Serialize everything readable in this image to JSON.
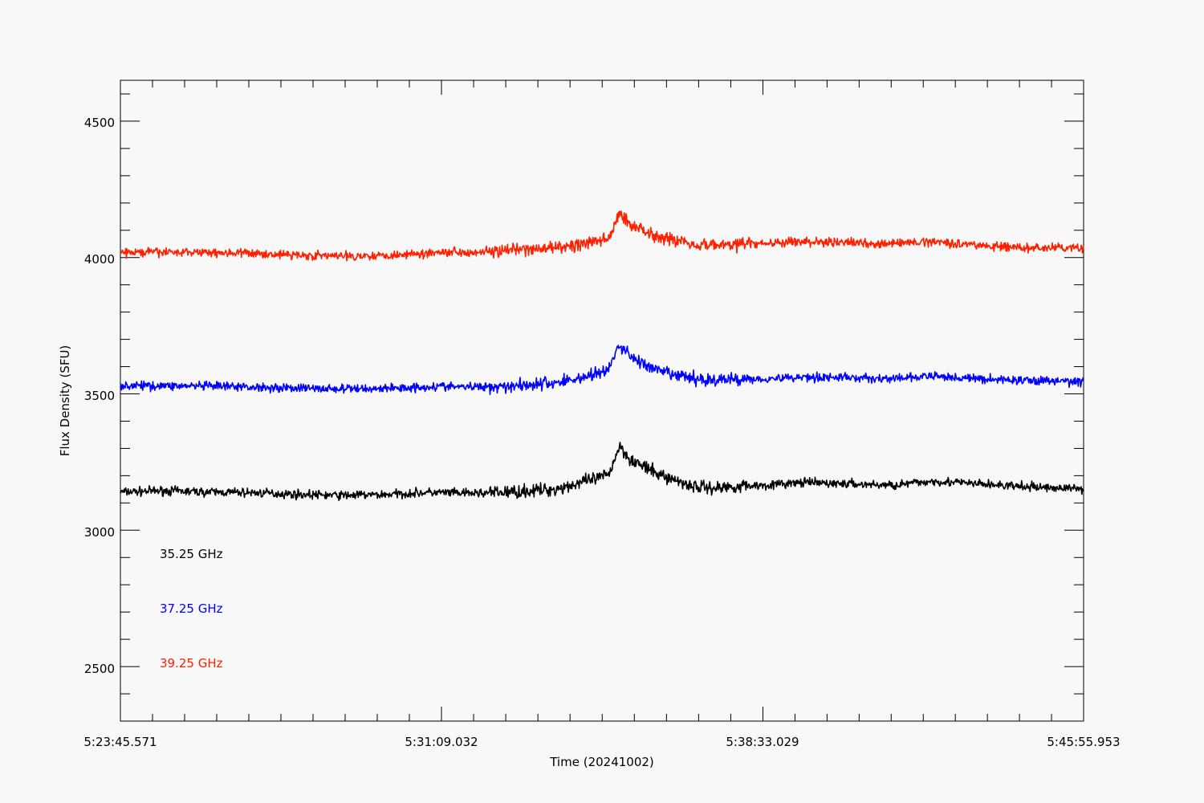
{
  "chart_data": {
    "type": "line",
    "title": "",
    "xlabel": "Time (20241002)",
    "ylabel": "Flux Density (SFU)",
    "x_ticks": [
      "5:23:45.571",
      "5:31:09.032",
      "5:38:33.029",
      "5:45:55.953"
    ],
    "x_range": [
      "5:23:45.571",
      "5:45:55.953"
    ],
    "ylim": [
      2300,
      4650
    ],
    "y_ticks": [
      2500,
      3000,
      3500,
      4000,
      4500
    ],
    "grid": false,
    "legend_position": "lower-left",
    "series": [
      {
        "name": "35.25 GHz",
        "color": "#000000",
        "x": [
          "5:23:45.571",
          "5:24:45",
          "5:25:45",
          "5:26:45",
          "5:27:45",
          "5:28:45",
          "5:29:45",
          "5:30:45",
          "5:31:09.032",
          "5:31:45",
          "5:32:45",
          "5:33:45",
          "5:34:15",
          "5:34:45",
          "5:35:00",
          "5:35:15",
          "5:35:30",
          "5:36:00",
          "5:36:30",
          "5:37:00",
          "5:37:30",
          "5:38:00",
          "5:38:33.029",
          "5:39:30",
          "5:40:30",
          "5:41:30",
          "5:42:30",
          "5:43:30",
          "5:44:30",
          "5:45:55.953"
        ],
        "values": [
          3140,
          3145,
          3140,
          3138,
          3132,
          3128,
          3130,
          3138,
          3138,
          3135,
          3140,
          3150,
          3170,
          3190,
          3205,
          3310,
          3260,
          3215,
          3185,
          3160,
          3155,
          3162,
          3165,
          3175,
          3170,
          3165,
          3180,
          3170,
          3160,
          3152
        ]
      },
      {
        "name": "37.25 GHz",
        "color": "#0000ff",
        "x": [
          "5:23:45.571",
          "5:24:45",
          "5:25:45",
          "5:26:45",
          "5:27:45",
          "5:28:45",
          "5:29:45",
          "5:30:45",
          "5:31:09.032",
          "5:31:45",
          "5:32:45",
          "5:33:45",
          "5:34:15",
          "5:34:45",
          "5:35:00",
          "5:35:15",
          "5:35:30",
          "5:36:00",
          "5:36:30",
          "5:37:00",
          "5:37:30",
          "5:38:00",
          "5:38:33.029",
          "5:39:30",
          "5:40:30",
          "5:41:30",
          "5:42:30",
          "5:43:30",
          "5:44:30",
          "5:45:55.953"
        ],
        "values": [
          3530,
          3530,
          3528,
          3525,
          3522,
          3518,
          3520,
          3525,
          3528,
          3525,
          3530,
          3540,
          3555,
          3575,
          3590,
          3680,
          3640,
          3590,
          3570,
          3555,
          3550,
          3555,
          3555,
          3562,
          3560,
          3555,
          3565,
          3555,
          3550,
          3545
        ]
      },
      {
        "name": "39.25 GHz",
        "color": "#ff2000",
        "x": [
          "5:23:45.571",
          "5:24:45",
          "5:25:45",
          "5:26:45",
          "5:27:45",
          "5:28:45",
          "5:29:45",
          "5:30:45",
          "5:31:09.032",
          "5:31:45",
          "5:32:45",
          "5:33:45",
          "5:34:15",
          "5:34:45",
          "5:35:00",
          "5:35:15",
          "5:35:30",
          "5:36:00",
          "5:36:30",
          "5:37:00",
          "5:37:30",
          "5:38:00",
          "5:38:33.029",
          "5:39:30",
          "5:40:30",
          "5:41:30",
          "5:42:30",
          "5:43:30",
          "5:44:30",
          "5:45:55.953"
        ],
        "values": [
          4018,
          4020,
          4020,
          4015,
          4010,
          4005,
          4008,
          4015,
          4022,
          4020,
          4025,
          4035,
          4045,
          4060,
          4070,
          4160,
          4125,
          4085,
          4065,
          4050,
          4045,
          4050,
          4052,
          4058,
          4055,
          4050,
          4060,
          4045,
          4035,
          4035
        ]
      }
    ]
  }
}
